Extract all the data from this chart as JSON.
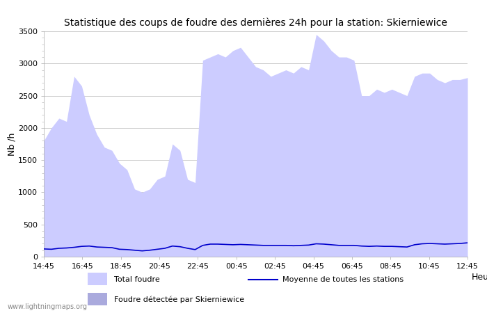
{
  "title": "Statistique des coups de foudre des dernières 24h pour la station: Skierniewice",
  "ylabel": "Nb /h",
  "xlabel": "Heure",
  "xlabels": [
    "14:45",
    "16:45",
    "18:45",
    "20:45",
    "22:45",
    "00:45",
    "02:45",
    "04:45",
    "06:45",
    "08:45",
    "10:45",
    "12:45"
  ],
  "ylim": [
    0,
    3500
  ],
  "yticks": [
    0,
    500,
    1000,
    1500,
    2000,
    2500,
    3000,
    3500
  ],
  "watermark": "www.lightningmaps.org",
  "fill_color": "#ccccff",
  "moyenne_color": "#0000cc",
  "background_color": "#ffffff",
  "grid_color": "#cccccc",
  "legend_total_color": "#ccccff",
  "legend_skier_color": "#aaaadd",
  "total_foudre": [
    1800,
    2000,
    2150,
    2100,
    2800,
    2650,
    2200,
    1900,
    1700,
    1650,
    1450,
    1350,
    1050,
    1000,
    1050,
    1200,
    1250,
    1750,
    1650,
    1200,
    1150,
    3050,
    3100,
    3150,
    3100,
    3200,
    3250,
    3100,
    2950,
    2900,
    2800,
    2850,
    2900,
    2850,
    2950,
    2900,
    3450,
    3350,
    3200,
    3100,
    3100,
    3050,
    2500,
    2500,
    2600,
    2550,
    2600,
    2550,
    2500,
    2800,
    2850,
    2850,
    2750,
    2700,
    2750,
    2750,
    2780
  ],
  "moyenne": [
    120,
    115,
    130,
    135,
    145,
    160,
    165,
    150,
    145,
    140,
    115,
    110,
    100,
    90,
    100,
    115,
    130,
    165,
    155,
    130,
    110,
    175,
    195,
    195,
    190,
    185,
    190,
    185,
    180,
    175,
    175,
    175,
    175,
    170,
    175,
    180,
    200,
    195,
    185,
    175,
    175,
    175,
    165,
    160,
    165,
    160,
    160,
    155,
    150,
    185,
    200,
    205,
    200,
    195,
    200,
    205,
    215
  ]
}
